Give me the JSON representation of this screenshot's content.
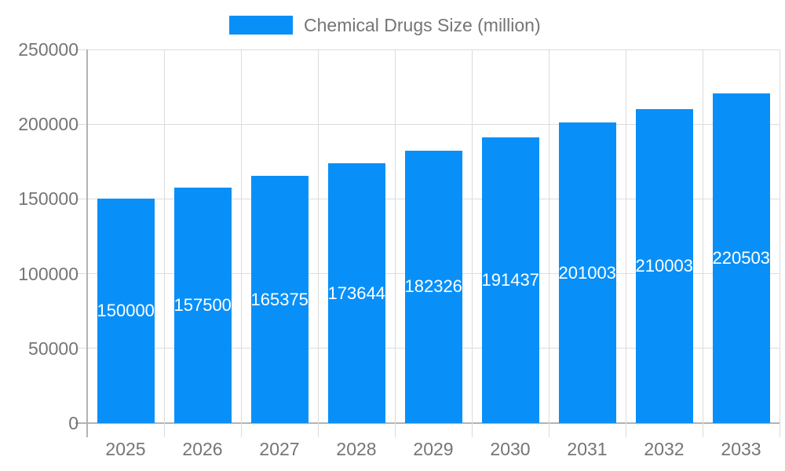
{
  "chart_data": {
    "type": "bar",
    "title": "Chemical Drugs Size (million)",
    "categories": [
      "2025",
      "2026",
      "2027",
      "2028",
      "2029",
      "2030",
      "2031",
      "2032",
      "2033"
    ],
    "series": [
      {
        "name": "Chemical Drugs Size (million)",
        "values": [
          150000,
          157500,
          165375,
          173644,
          182326,
          191437,
          201003,
          210003,
          220503
        ]
      }
    ],
    "bar_labels": [
      "150000",
      "157500",
      "165375",
      "173644",
      "182326",
      "191437",
      "201003",
      "210003",
      "220503"
    ],
    "xlabel": "",
    "ylabel": "",
    "ylim": [
      0,
      250000
    ],
    "yticks": [
      0,
      50000,
      100000,
      150000,
      200000,
      250000
    ],
    "grid": true,
    "legend_position": "top-center",
    "colors": {
      "bar": "#0990f8",
      "bar_label": "#ffffff",
      "grid": "#dcdcdc",
      "axis": "#b3b3b3",
      "tick_text": "#757575",
      "legend_text": "#757575",
      "background": "#ffffff"
    }
  }
}
